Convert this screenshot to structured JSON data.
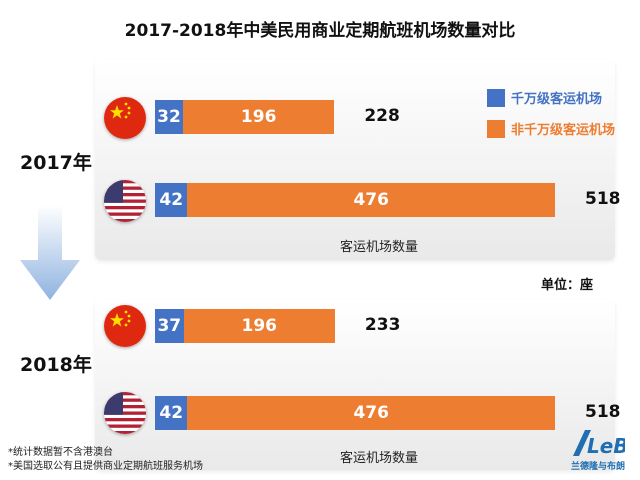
{
  "chart_data": {
    "type": "bar",
    "title": "2017-2018年中美民用商业定期航班机场数量对比",
    "stacked": true,
    "orientation": "horizontal",
    "unit": "单位：座",
    "legend": {
      "placement": "top-right",
      "items": [
        {
          "label": "千万级客运机场",
          "color": "#4472c4"
        },
        {
          "label": "非千万级客运机场",
          "color": "#ed7d31"
        }
      ]
    },
    "years": [
      {
        "label": "2017年",
        "xlabel": "客运机场数量",
        "rows": [
          {
            "country_icon": "china-flag",
            "values": [
              32,
              196
            ],
            "total": "228"
          },
          {
            "country_icon": "usa-flag",
            "values": [
              42,
              476
            ],
            "total": "518"
          }
        ]
      },
      {
        "label": "2018年",
        "xlabel": "客运机场数量",
        "rows": [
          {
            "country_icon": "china-flag",
            "values": [
              37,
              196
            ],
            "total": "233"
          },
          {
            "country_icon": "usa-flag",
            "values": [
              42,
              476
            ],
            "total": "518"
          }
        ]
      }
    ],
    "max_total": 518
  },
  "notes": [
    "*统计数据暂不含港澳台",
    "*美国选取公有且提供商业定期航班服务机场"
  ],
  "logo": {
    "mark": "LeB",
    "text": "兰德隆与布朗"
  }
}
